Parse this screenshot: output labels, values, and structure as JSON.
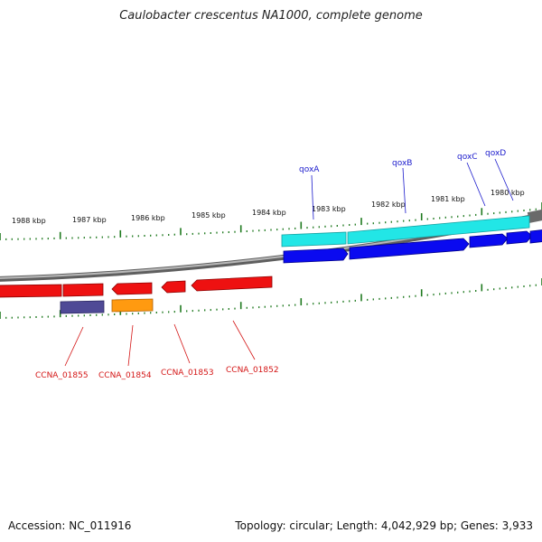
{
  "header": {
    "title": "Caulobacter crescentus NA1000, complete genome"
  },
  "footer": {
    "accession": "Accession: NC_011916",
    "summary": "Topology: circular; Length: 4,042,929 bp; Genes: 3,933"
  },
  "ruler": {
    "labels": [
      "1988 kbp",
      "1987 kbp",
      "1986 kbp",
      "1985 kbp",
      "1984 kbp",
      "1983 kbp",
      "1982 kbp",
      "1981 kbp",
      "1980 kbp"
    ]
  },
  "genes_top": [
    {
      "name": "qoxA",
      "color": "#1a1acc"
    },
    {
      "name": "qoxB",
      "color": "#1a1acc"
    },
    {
      "name": "qoxC",
      "color": "#1a1acc"
    },
    {
      "name": "qoxD",
      "color": "#1a1acc"
    }
  ],
  "genes_bottom": [
    {
      "name": "CCNA_01855",
      "color": "#d41515"
    },
    {
      "name": "CCNA_01854",
      "color": "#d41515"
    },
    {
      "name": "CCNA_01853",
      "color": "#d41515"
    },
    {
      "name": "CCNA_01852",
      "color": "#d41515"
    }
  ],
  "colors": {
    "forward_cds": "#0a0af0",
    "forward_gene": "#22e6e6",
    "reverse_cds": "#ee1111",
    "reverse_gene_orange": "#ff9a10",
    "reverse_gene_purple": "#4f4a96",
    "backbone": "#8a8a8a",
    "tick": "#1f7a1f"
  }
}
